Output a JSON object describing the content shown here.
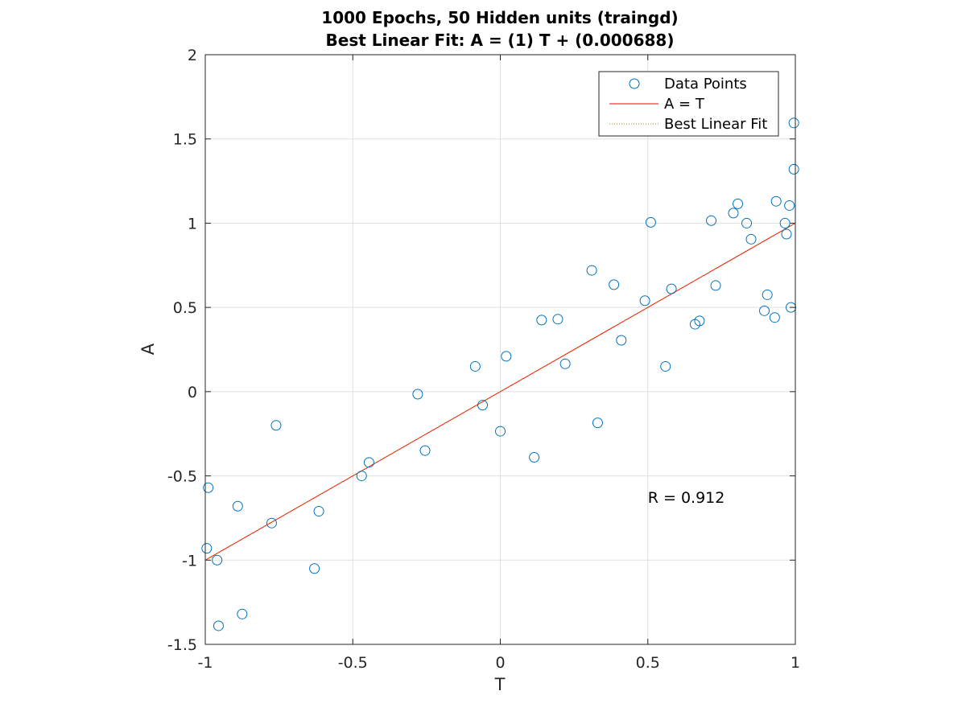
{
  "chart_data": {
    "type": "scatter",
    "title_lines": [
      "1000 Epochs, 50 Hidden units (traingd)",
      "Best Linear Fit:  A = (1) T + (0.000688)"
    ],
    "xlabel": "T",
    "ylabel": "A",
    "xlim": [
      -1,
      1
    ],
    "ylim": [
      -1.5,
      2
    ],
    "xticks": [
      -1,
      -0.5,
      0,
      0.5,
      1
    ],
    "xtick_labels": [
      "-1",
      "-0.5",
      "0",
      "0.5",
      "1"
    ],
    "yticks": [
      -1.5,
      -1,
      -0.5,
      0,
      0.5,
      1,
      1.5,
      2
    ],
    "ytick_labels": [
      "-1.5",
      "-1",
      "-0.5",
      "0",
      "0.5",
      "1",
      "1.5",
      "2"
    ],
    "grid": true,
    "legend_position": "top-right",
    "legend": [
      {
        "label": "Data Points",
        "marker": "circle",
        "color": "#0072bd"
      },
      {
        "label": "A = T",
        "line": "solid",
        "color": "#ff0000"
      },
      {
        "label": "Best Linear Fit",
        "line": "dotted",
        "color": "#b8860b"
      }
    ],
    "annotation": "R = 0.912",
    "annotation_at": [
      0.5,
      -0.63
    ],
    "series": [
      {
        "name": "Data Points",
        "color": "#0072bd",
        "points": [
          [
            -0.995,
            -0.93
          ],
          [
            -0.99,
            -0.57
          ],
          [
            -0.96,
            -1.0
          ],
          [
            -0.955,
            -1.39
          ],
          [
            -0.89,
            -0.68
          ],
          [
            -0.875,
            -1.32
          ],
          [
            -0.775,
            -0.78
          ],
          [
            -0.76,
            -0.2
          ],
          [
            -0.63,
            -1.05
          ],
          [
            -0.615,
            -0.71
          ],
          [
            -0.47,
            -0.5
          ],
          [
            -0.445,
            -0.42
          ],
          [
            -0.28,
            -0.015
          ],
          [
            -0.255,
            -0.35
          ],
          [
            -0.085,
            0.15
          ],
          [
            -0.06,
            -0.08
          ],
          [
            0.0,
            -0.235
          ],
          [
            0.02,
            0.21
          ],
          [
            0.115,
            -0.39
          ],
          [
            0.14,
            0.425
          ],
          [
            0.195,
            0.43
          ],
          [
            0.22,
            0.165
          ],
          [
            0.31,
            0.72
          ],
          [
            0.33,
            -0.185
          ],
          [
            0.385,
            0.635
          ],
          [
            0.41,
            0.305
          ],
          [
            0.49,
            0.54
          ],
          [
            0.51,
            1.005
          ],
          [
            0.56,
            0.15
          ],
          [
            0.58,
            0.61
          ],
          [
            0.66,
            0.4
          ],
          [
            0.675,
            0.42
          ],
          [
            0.715,
            1.015
          ],
          [
            0.73,
            0.63
          ],
          [
            0.79,
            1.06
          ],
          [
            0.805,
            1.115
          ],
          [
            0.835,
            1.0
          ],
          [
            0.85,
            0.905
          ],
          [
            0.895,
            0.48
          ],
          [
            0.905,
            0.575
          ],
          [
            0.93,
            0.44
          ],
          [
            0.935,
            1.13
          ],
          [
            0.965,
            1.0
          ],
          [
            0.97,
            0.935
          ],
          [
            0.98,
            1.105
          ],
          [
            0.985,
            0.5
          ],
          [
            0.995,
            1.32
          ],
          [
            0.995,
            1.595
          ]
        ]
      },
      {
        "name": "A = T",
        "color": "#ff0000",
        "line": [
          [
            -1,
            -1
          ],
          [
            1,
            1
          ]
        ]
      },
      {
        "name": "Best Linear Fit",
        "color": "#b8860b",
        "slope": 1,
        "intercept": 0.000688
      }
    ]
  }
}
